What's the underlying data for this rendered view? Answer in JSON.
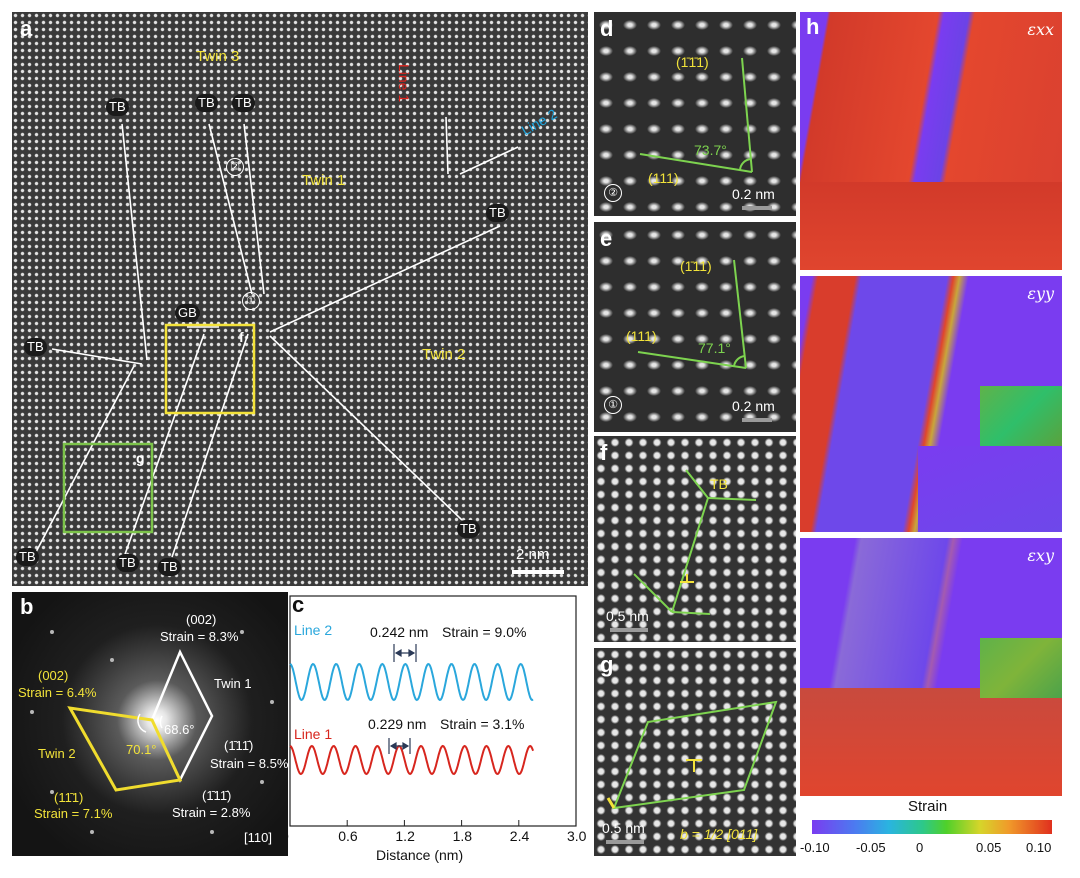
{
  "panel_a": {
    "tag": "a",
    "labels": {
      "twin3": "Twin 3",
      "twin1": "Twin 1",
      "twin2": "Twin 2",
      "gb": "GB",
      "line1": "Line 1",
      "line2": "Line 2",
      "f": "f",
      "g": "g",
      "m1": "①",
      "m2": "②"
    },
    "tb": "TB",
    "scale": "2 nm"
  },
  "panel_b": {
    "tag": "b",
    "twin1": {
      "name": "Twin 1",
      "s002": "(002)",
      "strain002": "Strain = 8.3%",
      "s111a": "(1̄11̄)",
      "strain111a": "Strain = 8.5%",
      "s111b": "(1̄11̄)",
      "strain111b": "Strain = 2.8%"
    },
    "twin2": {
      "name": "Twin 2",
      "s002": "(002)",
      "strain002": "Strain = 6.4%",
      "s111": "(11̄1)",
      "strain111": "Strain = 7.1%"
    },
    "angle1": "68.6°",
    "angle2": "70.1°",
    "zone": "[110]"
  },
  "panel_c": {
    "tag": "c",
    "line2": {
      "name": "Line 2",
      "spacing": "0.242 nm",
      "strain": "Strain = 9.0%",
      "color": "#2aa7dc"
    },
    "line1": {
      "name": "Line 1",
      "spacing": "0.229 nm",
      "strain": "Strain = 3.1%",
      "color": "#d7261e"
    },
    "xlabel": "Distance (nm)",
    "xticks": [
      "0",
      "0.6",
      "1.2",
      "1.8",
      "2.4",
      "3.0"
    ],
    "xlim": [
      0,
      3.0
    ]
  },
  "panel_d": {
    "tag": "d",
    "plane1": "(1̄1̄1)",
    "plane2": "(111)",
    "angle": "73.7°",
    "marker": "②",
    "scale": "0.2 nm"
  },
  "panel_e": {
    "tag": "e",
    "plane1": "(1̄11)",
    "plane2": "(111)",
    "angle": "77.1°",
    "marker": "①",
    "scale": "0.2 nm"
  },
  "panel_f": {
    "tag": "f",
    "tb": "TB",
    "scale": "0.5 nm"
  },
  "panel_g": {
    "tag": "g",
    "scale": "0.5 nm",
    "burgers": "b = 1/2 [011]"
  },
  "panel_h": {
    "tag": "h",
    "maps": [
      "εxx",
      "εyy",
      "εxy"
    ],
    "colorbar": {
      "title": "Strain",
      "ticks": [
        "-0.10",
        "-0.05",
        "0",
        "0.05",
        "0.10"
      ]
    }
  }
}
